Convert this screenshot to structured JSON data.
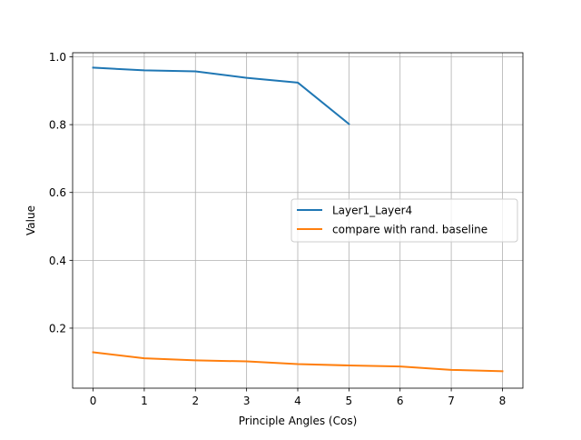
{
  "chart_data": {
    "type": "line",
    "xlabel": "Principle Angles (Cos)",
    "ylabel": "Value",
    "xlim": [
      -0.4,
      8.4
    ],
    "ylim": [
      0.023,
      1.012
    ],
    "xticks": [
      0,
      1,
      2,
      3,
      4,
      5,
      6,
      7,
      8
    ],
    "yticks": [
      0.2,
      0.4,
      0.6,
      0.8,
      1.0
    ],
    "ytick_labels": [
      "0.2",
      "0.4",
      "0.6",
      "0.8",
      "1.0"
    ],
    "grid": true,
    "legend_position": "center-right",
    "series": [
      {
        "name": "Layer1_Layer4",
        "color": "#1f77b4",
        "x": [
          0,
          1,
          2,
          3,
          4,
          5
        ],
        "values": [
          0.968,
          0.96,
          0.957,
          0.938,
          0.924,
          0.802
        ]
      },
      {
        "name": "compare with rand. baseline",
        "color": "#ff7f0e",
        "x": [
          0,
          1,
          2,
          3,
          4,
          5,
          6,
          7,
          8
        ],
        "values": [
          0.129,
          0.111,
          0.105,
          0.102,
          0.094,
          0.09,
          0.087,
          0.077,
          0.073
        ]
      }
    ]
  }
}
